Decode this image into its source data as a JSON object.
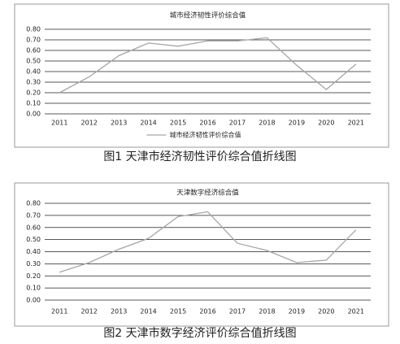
{
  "chart_data": [
    {
      "type": "line",
      "title": "城市经济韧性评价综合值",
      "categories": [
        "2011",
        "2012",
        "2013",
        "2014",
        "2015",
        "2016",
        "2017",
        "2018",
        "2019",
        "2020",
        "2021"
      ],
      "series": [
        {
          "name": "城市经济韧性评价综合值",
          "color": "#a6a6a6",
          "values": [
            0.2,
            0.35,
            0.55,
            0.67,
            0.64,
            0.69,
            0.69,
            0.72,
            0.46,
            0.23,
            0.47
          ]
        }
      ],
      "ylim": [
        0,
        0.8
      ],
      "yticks": [
        {
          "value": 0,
          "label": "0.00"
        },
        {
          "value": 0.1,
          "label": "0.10"
        },
        {
          "value": 0.2,
          "label": "0.20"
        },
        {
          "value": 0.3,
          "label": "0.30"
        },
        {
          "value": 0.4,
          "label": "0.40"
        },
        {
          "value": 0.5,
          "label": "0.50"
        },
        {
          "value": 0.6,
          "label": "0.60"
        },
        {
          "value": 0.7,
          "label": "0.70"
        },
        {
          "value": 0.8,
          "label": "0.80"
        }
      ],
      "grid": true,
      "legend": "bottom",
      "caption": "图1  天津市经济韧性评价综合值折线图"
    },
    {
      "type": "line",
      "title": "天津数字经济综合值",
      "categories": [
        "2011",
        "2012",
        "2013",
        "2014",
        "2015",
        "2016",
        "2017",
        "2018",
        "2019",
        "2020",
        "2021"
      ],
      "values": [
        0.23,
        0.31,
        0.42,
        0.51,
        0.69,
        0.73,
        0.47,
        0.41,
        0.31,
        0.33,
        0.58
      ],
      "color": "#a6a6a6",
      "ylim": [
        0,
        0.8
      ],
      "yticks": [
        {
          "value": 0,
          "label": "0.00"
        },
        {
          "value": 0.1,
          "label": "0.10"
        },
        {
          "value": 0.2,
          "label": "0.20"
        },
        {
          "value": 0.3,
          "label": "0.30"
        },
        {
          "value": 0.4,
          "label": "0.40"
        },
        {
          "value": 0.5,
          "label": "0.50"
        },
        {
          "value": 0.6,
          "label": "0.60"
        },
        {
          "value": 0.7,
          "label": "0.70"
        },
        {
          "value": 0.8,
          "label": "0.80"
        }
      ],
      "grid": true,
      "caption": "图2  天津市数字经济评价综合值折线图"
    }
  ]
}
